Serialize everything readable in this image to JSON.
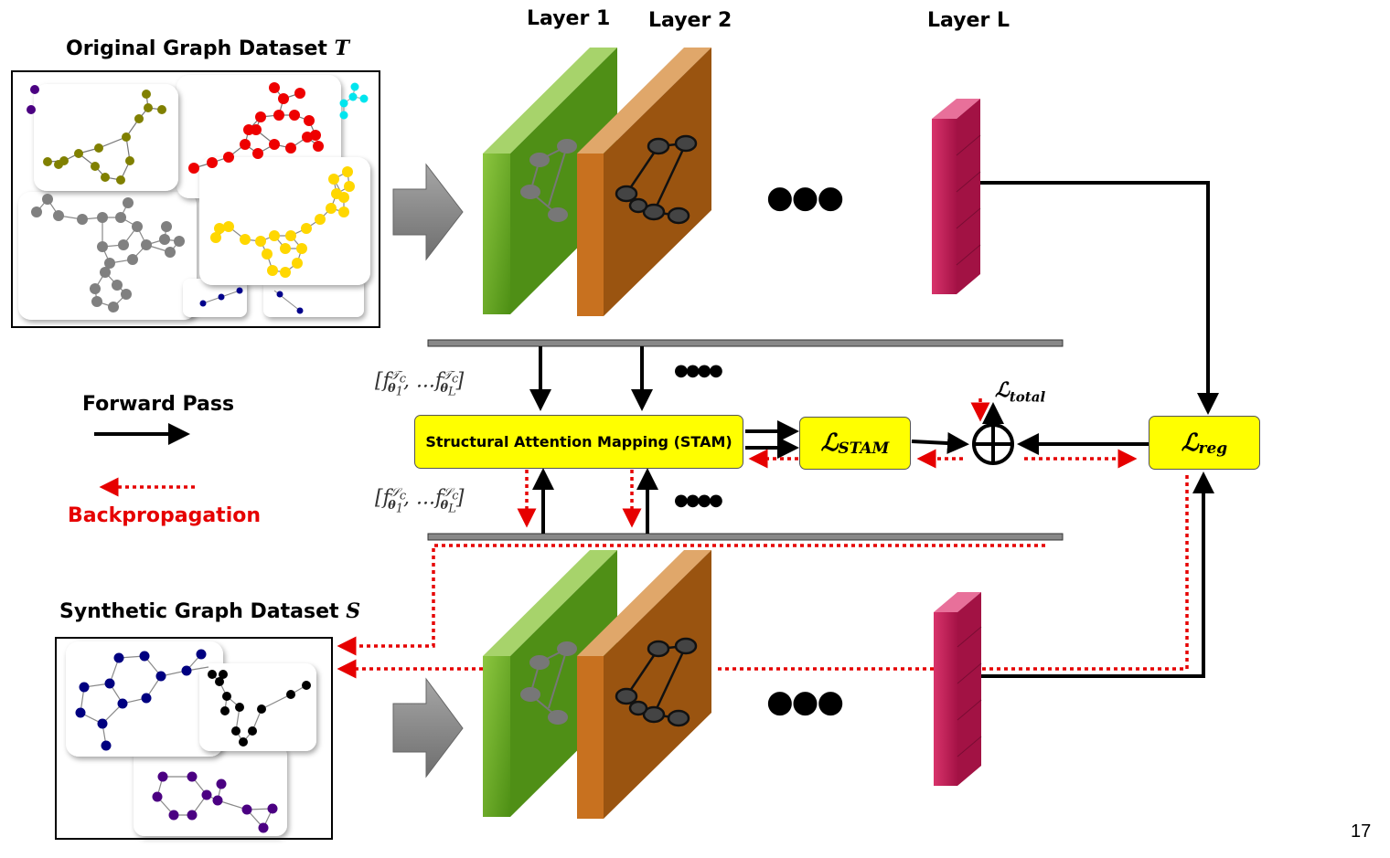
{
  "labels": {
    "original_dataset": "Original Graph Dataset",
    "original_symbol": "T",
    "synthetic_dataset": "Synthetic Graph Dataset",
    "synthetic_symbol": "S",
    "layer1": "Layer 1",
    "layer2": "Layer 2",
    "layerL": "Layer L",
    "forward_pass": "Forward Pass",
    "backpropagation": "Backpropagation",
    "stam": "Structural Attention Mapping (STAM)",
    "loss_stam_main": "ℒ",
    "loss_stam_sub": "STAM",
    "loss_reg_main": "ℒ",
    "loss_reg_sub": "reg",
    "loss_total_main": "ℒ",
    "loss_total_sub": "total",
    "dots_small": "●●●●",
    "dots_large": "●●●",
    "page_number": "17"
  },
  "features": {
    "teacher_open": "[",
    "teacher_f1": "f",
    "teacher_sup": "𝒯",
    "teacher_supsub": "c",
    "teacher_sub1": "θ",
    "teacher_sub1n": "1",
    "teacher_mid": ", ...",
    "teacher_f2": "f",
    "teacher_sub2": "θ",
    "teacher_sub2n": "L",
    "teacher_close": "]",
    "student_sup": "𝒮"
  },
  "colors": {
    "forward": "#000000",
    "backprop": "#e60000",
    "loss_box": "#ffff00",
    "layer1": "#6fae1f",
    "layer2": "#c8711f",
    "layerL": "#c81e5a",
    "big_arrow": "#8c8c8c"
  }
}
